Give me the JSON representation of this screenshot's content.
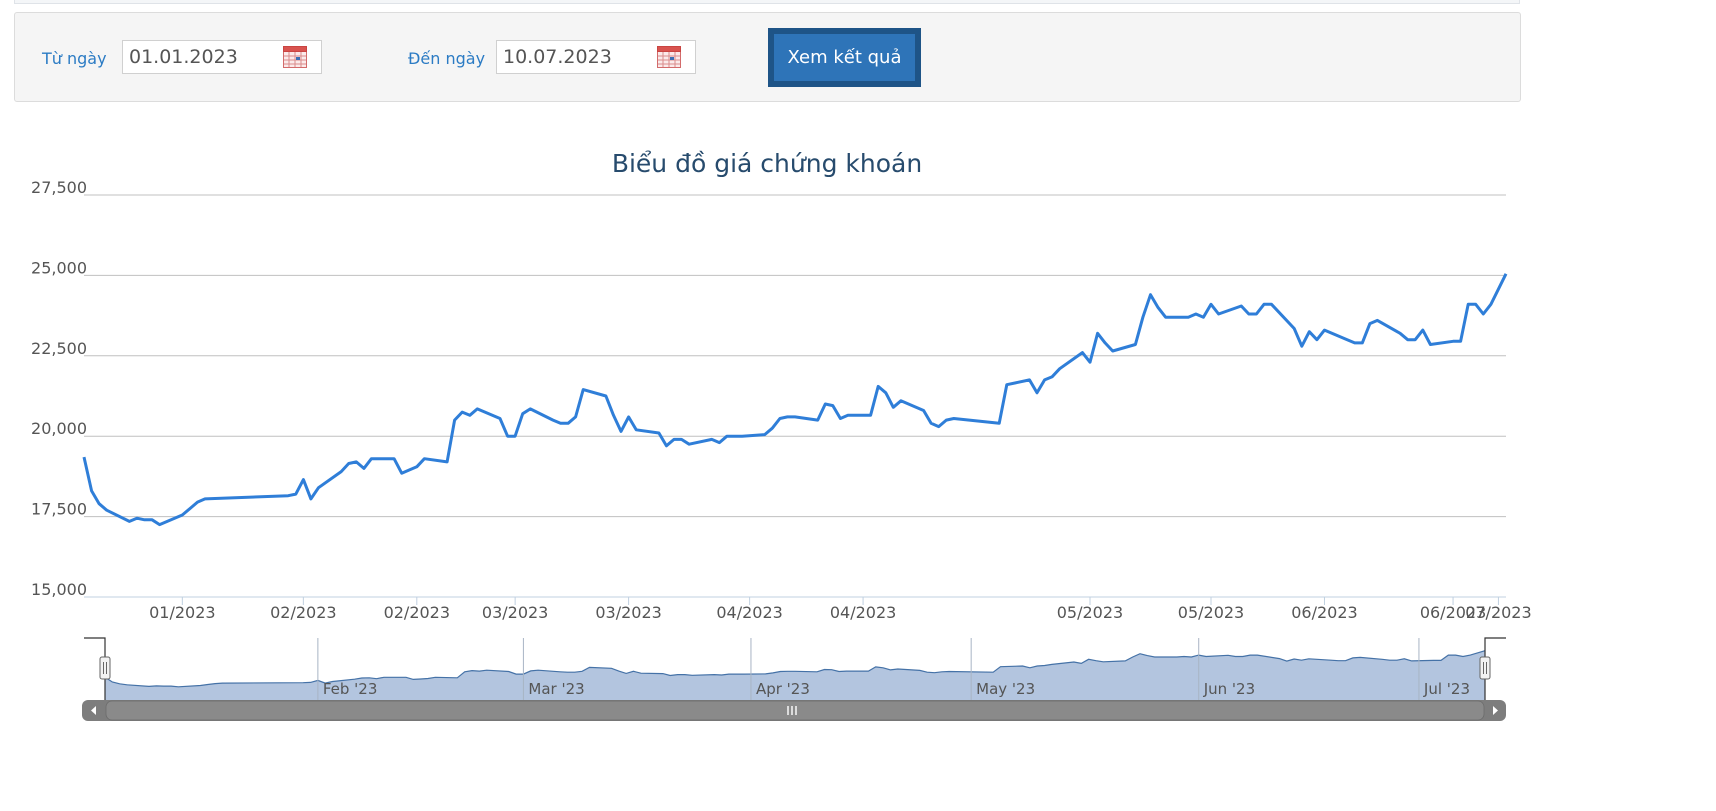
{
  "filter": {
    "from_label": "Từ ngày",
    "from_value": "01.01.2023",
    "to_label": "Đến ngày",
    "to_value": "10.07.2023",
    "submit_label": "Xem kết quả"
  },
  "colors": {
    "line": "#2f7ed8",
    "navigator_fill": "#b3c5df",
    "navigator_line": "#4572a7",
    "title": "#274b6d",
    "accent_link": "#2b7bc4"
  },
  "chart_data": {
    "type": "line",
    "title": "Biểu đồ giá chứng khoán",
    "xlabel": "",
    "ylabel": "",
    "ylim": [
      15000,
      27500
    ],
    "yticks": [
      "15,000",
      "17,500",
      "20,000",
      "22,500",
      "25,000",
      "27,500"
    ],
    "ytick_values": [
      15000,
      17500,
      20000,
      22500,
      25000,
      27500
    ],
    "xticks": [
      "01/2023",
      "02/2023",
      "02/2023",
      "03/2023",
      "03/2023",
      "04/2023",
      "04/2023",
      "05/2023",
      "05/2023",
      "06/2023",
      "06/2023",
      "07/2023"
    ],
    "xtick_dates": [
      "2023-01-16",
      "2023-02-01",
      "2023-02-16",
      "2023-03-01",
      "2023-03-16",
      "2023-04-01",
      "2023-04-16",
      "2023-05-16",
      "2023-06-01",
      "2023-06-16",
      "2023-07-03",
      "2023-07-09"
    ],
    "series": [
      {
        "values": [
          [
            "2023-01-03",
            19350
          ],
          [
            "2023-01-04",
            18300
          ],
          [
            "2023-01-05",
            17900
          ],
          [
            "2023-01-06",
            17700
          ],
          [
            "2023-01-09",
            17350
          ],
          [
            "2023-01-10",
            17450
          ],
          [
            "2023-01-11",
            17400
          ],
          [
            "2023-01-12",
            17400
          ],
          [
            "2023-01-13",
            17250
          ],
          [
            "2023-01-16",
            17550
          ],
          [
            "2023-01-17",
            17750
          ],
          [
            "2023-01-18",
            17950
          ],
          [
            "2023-01-19",
            18050
          ],
          [
            "2023-01-30",
            18150
          ],
          [
            "2023-01-31",
            18200
          ],
          [
            "2023-02-01",
            18650
          ],
          [
            "2023-02-02",
            18050
          ],
          [
            "2023-02-03",
            18400
          ],
          [
            "2023-02-06",
            18900
          ],
          [
            "2023-02-07",
            19150
          ],
          [
            "2023-02-08",
            19200
          ],
          [
            "2023-02-09",
            19000
          ],
          [
            "2023-02-10",
            19300
          ],
          [
            "2023-02-13",
            19300
          ],
          [
            "2023-02-14",
            18850
          ],
          [
            "2023-02-15",
            18950
          ],
          [
            "2023-02-16",
            19050
          ],
          [
            "2023-02-17",
            19300
          ],
          [
            "2023-02-20",
            19200
          ],
          [
            "2023-02-21",
            20500
          ],
          [
            "2023-02-22",
            20750
          ],
          [
            "2023-02-23",
            20650
          ],
          [
            "2023-02-24",
            20850
          ],
          [
            "2023-02-27",
            20550
          ],
          [
            "2023-02-28",
            20000
          ],
          [
            "2023-03-01",
            20000
          ],
          [
            "2023-03-02",
            20700
          ],
          [
            "2023-03-03",
            20850
          ],
          [
            "2023-03-06",
            20500
          ],
          [
            "2023-03-07",
            20400
          ],
          [
            "2023-03-08",
            20400
          ],
          [
            "2023-03-09",
            20600
          ],
          [
            "2023-03-10",
            21450
          ],
          [
            "2023-03-13",
            21250
          ],
          [
            "2023-03-14",
            20650
          ],
          [
            "2023-03-15",
            20150
          ],
          [
            "2023-03-16",
            20600
          ],
          [
            "2023-03-17",
            20200
          ],
          [
            "2023-03-20",
            20100
          ],
          [
            "2023-03-21",
            19700
          ],
          [
            "2023-03-22",
            19900
          ],
          [
            "2023-03-23",
            19900
          ],
          [
            "2023-03-24",
            19750
          ],
          [
            "2023-03-27",
            19900
          ],
          [
            "2023-03-28",
            19800
          ],
          [
            "2023-03-29",
            20000
          ],
          [
            "2023-03-30",
            20000
          ],
          [
            "2023-03-31",
            20000
          ],
          [
            "2023-04-03",
            20050
          ],
          [
            "2023-04-04",
            20250
          ],
          [
            "2023-04-05",
            20550
          ],
          [
            "2023-04-06",
            20600
          ],
          [
            "2023-04-07",
            20600
          ],
          [
            "2023-04-10",
            20500
          ],
          [
            "2023-04-11",
            21000
          ],
          [
            "2023-04-12",
            20950
          ],
          [
            "2023-04-13",
            20550
          ],
          [
            "2023-04-14",
            20650
          ],
          [
            "2023-04-17",
            20650
          ],
          [
            "2023-04-18",
            21550
          ],
          [
            "2023-04-19",
            21350
          ],
          [
            "2023-04-20",
            20900
          ],
          [
            "2023-04-21",
            21100
          ],
          [
            "2023-04-24",
            20800
          ],
          [
            "2023-04-25",
            20400
          ],
          [
            "2023-04-26",
            20300
          ],
          [
            "2023-04-27",
            20500
          ],
          [
            "2023-04-28",
            20550
          ],
          [
            "2023-05-04",
            20400
          ],
          [
            "2023-05-05",
            21600
          ],
          [
            "2023-05-08",
            21750
          ],
          [
            "2023-05-09",
            21350
          ],
          [
            "2023-05-10",
            21750
          ],
          [
            "2023-05-11",
            21850
          ],
          [
            "2023-05-12",
            22100
          ],
          [
            "2023-05-15",
            22600
          ],
          [
            "2023-05-16",
            22300
          ],
          [
            "2023-05-17",
            23200
          ],
          [
            "2023-05-18",
            22900
          ],
          [
            "2023-05-19",
            22650
          ],
          [
            "2023-05-22",
            22850
          ],
          [
            "2023-05-23",
            23700
          ],
          [
            "2023-05-24",
            24400
          ],
          [
            "2023-05-25",
            24000
          ],
          [
            "2023-05-26",
            23700
          ],
          [
            "2023-05-29",
            23700
          ],
          [
            "2023-05-30",
            23800
          ],
          [
            "2023-05-31",
            23700
          ],
          [
            "2023-06-01",
            24100
          ],
          [
            "2023-06-02",
            23800
          ],
          [
            "2023-06-05",
            24050
          ],
          [
            "2023-06-06",
            23800
          ],
          [
            "2023-06-07",
            23800
          ],
          [
            "2023-06-08",
            24100
          ],
          [
            "2023-06-09",
            24100
          ],
          [
            "2023-06-12",
            23350
          ],
          [
            "2023-06-13",
            22800
          ],
          [
            "2023-06-14",
            23250
          ],
          [
            "2023-06-15",
            23000
          ],
          [
            "2023-06-16",
            23300
          ],
          [
            "2023-06-19",
            23000
          ],
          [
            "2023-06-20",
            22900
          ],
          [
            "2023-06-21",
            22900
          ],
          [
            "2023-06-22",
            23500
          ],
          [
            "2023-06-23",
            23600
          ],
          [
            "2023-06-26",
            23200
          ],
          [
            "2023-06-27",
            23000
          ],
          [
            "2023-06-28",
            23000
          ],
          [
            "2023-06-29",
            23300
          ],
          [
            "2023-06-30",
            22850
          ],
          [
            "2023-07-03",
            22950
          ],
          [
            "2023-07-04",
            22950
          ],
          [
            "2023-07-05",
            24100
          ],
          [
            "2023-07-06",
            24100
          ],
          [
            "2023-07-07",
            23800
          ],
          [
            "2023-07-08",
            24100
          ],
          [
            "2023-07-10",
            25050
          ]
        ]
      }
    ],
    "navigator": {
      "labels": [
        "Feb '23",
        "Mar '23",
        "Apr '23",
        "May '23",
        "Jun '23",
        "Jul '23"
      ],
      "label_dates": [
        "2023-02-01",
        "2023-03-01",
        "2023-04-01",
        "2023-05-01",
        "2023-06-01",
        "2023-07-01"
      ]
    },
    "grid": true,
    "legend": "none"
  }
}
